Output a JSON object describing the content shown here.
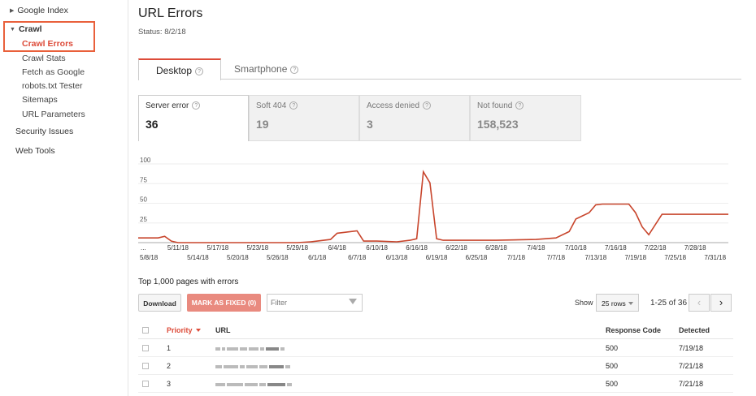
{
  "sidebar": {
    "google_index": "Google Index",
    "crawl": "Crawl",
    "crawl_items": [
      "Crawl Errors",
      "Crawl Stats",
      "Fetch as Google",
      "robots.txt Tester",
      "Sitemaps",
      "URL Parameters"
    ],
    "security_issues": "Security Issues",
    "web_tools": "Web Tools"
  },
  "header": {
    "title": "URL Errors",
    "status": "Status: 8/2/18"
  },
  "tabs": [
    {
      "label": "Desktop"
    },
    {
      "label": "Smartphone"
    }
  ],
  "cards": [
    {
      "label": "Server error",
      "value": "36"
    },
    {
      "label": "Soft 404",
      "value": "19"
    },
    {
      "label": "Access denied",
      "value": "3"
    },
    {
      "label": "Not found",
      "value": "158,523"
    }
  ],
  "chart_data": {
    "type": "line",
    "color": "#c8452c",
    "ylim": [
      0,
      100
    ],
    "y_ticks": [
      100,
      75,
      50,
      25
    ],
    "x_labels_top": [
      "...",
      "5/11/18",
      "5/17/18",
      "5/23/18",
      "5/29/18",
      "6/4/18",
      "6/10/18",
      "6/16/18",
      "6/22/18",
      "6/28/18",
      "7/4/18",
      "7/10/18",
      "7/16/18",
      "7/22/18",
      "7/28/18"
    ],
    "x_labels_bottom": [
      "5/8/18",
      "5/14/18",
      "5/20/18",
      "5/26/18",
      "6/1/18",
      "6/7/18",
      "6/13/18",
      "6/19/18",
      "6/25/18",
      "7/1/18",
      "7/7/18",
      "7/13/18",
      "7/19/18",
      "7/25/18",
      "7/31/18"
    ],
    "x": [
      "5/5/18",
      "5/8/18",
      "5/9/18",
      "5/10/18",
      "5/11/18",
      "5/20/18",
      "5/29/18",
      "5/31/18",
      "6/1/18",
      "6/3/18",
      "6/4/18",
      "6/7/18",
      "6/8/18",
      "6/10/18",
      "6/13/18",
      "6/15/18",
      "6/16/18",
      "6/17/18",
      "6/18/18",
      "6/19/18",
      "6/20/18",
      "6/22/18",
      "6/28/18",
      "7/4/18",
      "7/7/18",
      "7/9/18",
      "7/10/18",
      "7/12/18",
      "7/13/18",
      "7/14/18",
      "7/16/18",
      "7/18/18",
      "7/19/18",
      "7/20/18",
      "7/21/18",
      "7/23/18",
      "7/24/18",
      "7/31/18",
      "8/2/18"
    ],
    "values": [
      6,
      6,
      8,
      2,
      0,
      0,
      0,
      1,
      2,
      4,
      12,
      15,
      2,
      2,
      1,
      3,
      5,
      90,
      76,
      5,
      3,
      3,
      3,
      4,
      6,
      14,
      30,
      38,
      48,
      49,
      49,
      49,
      38,
      20,
      10,
      36,
      36,
      36,
      36
    ]
  },
  "table_section": {
    "heading": "Top 1,000 pages with errors",
    "download": "Download",
    "mark_fixed": "MARK AS FIXED (0)",
    "filter_placeholder": "Filter",
    "show_label": "Show",
    "rows_select": "25 rows",
    "range": "1-25 of 36",
    "prev_icon": "‹",
    "next_icon": "›"
  },
  "table": {
    "headers": {
      "priority": "Priority",
      "url": "URL",
      "response": "Response Code",
      "detected": "Detected"
    },
    "rows": [
      {
        "priority": "1",
        "response": "500",
        "detected": "7/19/18"
      },
      {
        "priority": "2",
        "response": "500",
        "detected": "7/21/18"
      },
      {
        "priority": "3",
        "response": "500",
        "detected": "7/21/18"
      }
    ]
  }
}
